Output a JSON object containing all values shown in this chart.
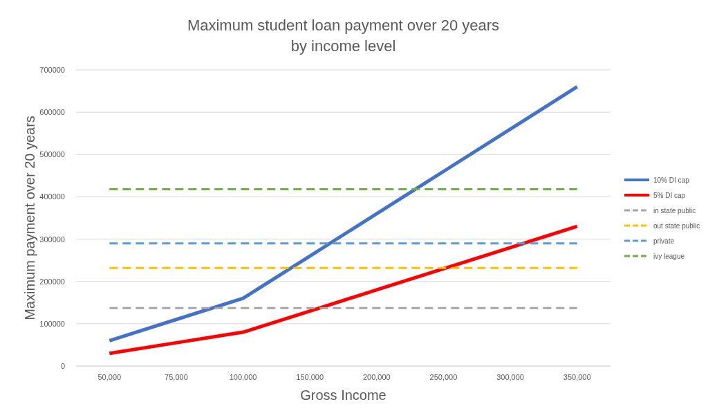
{
  "chart_data": {
    "type": "line",
    "title": "Maximum student loan payment over 20 years\nby income level",
    "xlabel": "Gross Income",
    "ylabel": "Maximum payment over 20 years",
    "categories": [
      "50,000",
      "75,000",
      "100,000",
      "150,000",
      "200,000",
      "250,000",
      "300,000",
      "350,000"
    ],
    "series": [
      {
        "name": "10% DI cap",
        "color": "#4472c4",
        "values": [
          60000,
          110000,
          160000,
          260000,
          360000,
          460000,
          560000,
          660000
        ]
      },
      {
        "name": "5% DI cap",
        "color": "#ff0000",
        "values": [
          30000,
          55000,
          80000,
          130000,
          180000,
          230000,
          280000,
          330000
        ]
      },
      {
        "name": "in state public",
        "color": "#a5a5a5",
        "line_style": "dashed",
        "values": [
          137000,
          137000,
          137000,
          137000,
          137000,
          137000,
          137000,
          137000
        ]
      },
      {
        "name": "out state public",
        "color": "#ffc000",
        "line_style": "dashed",
        "values": [
          232000,
          232000,
          232000,
          232000,
          232000,
          232000,
          232000,
          232000
        ]
      },
      {
        "name": "private",
        "color": "#5b9bd5",
        "line_style": "dashed",
        "values": [
          290000,
          290000,
          290000,
          290000,
          290000,
          290000,
          290000,
          290000
        ]
      },
      {
        "name": "ivy league",
        "color": "#70ad47",
        "line_style": "dashed",
        "values": [
          418000,
          418000,
          418000,
          418000,
          418000,
          418000,
          418000,
          418000
        ]
      }
    ],
    "ylim": [
      0,
      700000
    ],
    "yticks": [
      0,
      100000,
      200000,
      300000,
      400000,
      500000,
      600000,
      700000
    ],
    "grid": "y",
    "legend": "right",
    "marker": "none",
    "line_style": "solid"
  }
}
